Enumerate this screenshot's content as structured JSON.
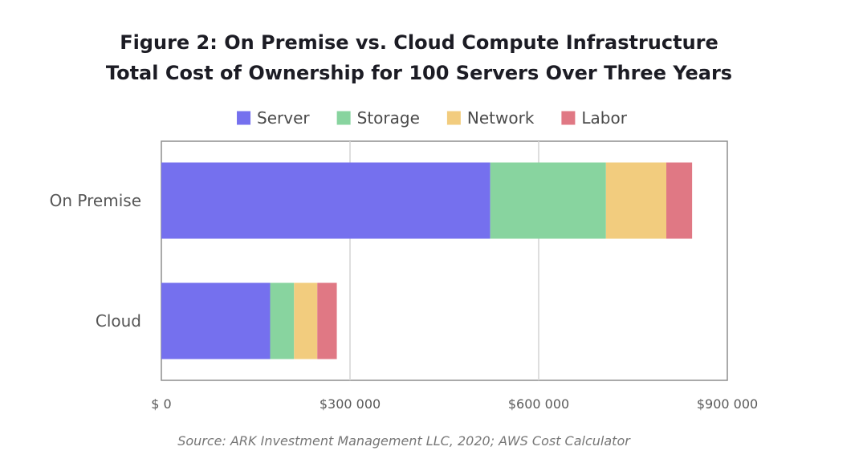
{
  "chart_data": {
    "type": "bar",
    "orientation": "horizontal",
    "stacked": true,
    "title_lines": [
      "Figure 2: On Premise vs. Cloud Compute Infrastructure",
      "Total Cost of Ownership for 100 Servers Over Three Years"
    ],
    "categories": [
      "On Premise",
      "Cloud"
    ],
    "series": [
      {
        "name": "Server",
        "color": "#7570ee",
        "values": [
          523000,
          173000
        ]
      },
      {
        "name": "Storage",
        "color": "#88d49f",
        "values": [
          184000,
          38000
        ]
      },
      {
        "name": "Network",
        "color": "#f2cc7e",
        "values": [
          96000,
          37000
        ]
      },
      {
        "name": "Labor",
        "color": "#e07884",
        "values": [
          41000,
          31000
        ]
      }
    ],
    "xlim": [
      0,
      900000
    ],
    "x_ticks": [
      0,
      300000,
      600000,
      900000
    ],
    "x_tick_labels": [
      "$ 0",
      "$300 000",
      "$600 000",
      "$900 000"
    ],
    "grid": "vertical",
    "legend_position": "top",
    "source": "Source: ARK Investment Management LLC, 2020; AWS Cost Calculator"
  }
}
